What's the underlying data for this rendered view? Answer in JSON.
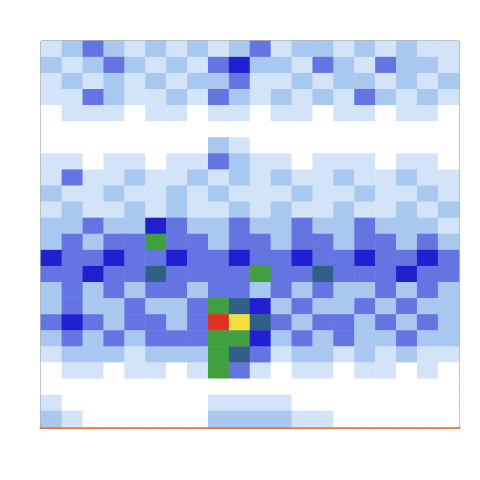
{
  "chart_data": {
    "type": "heatmap",
    "tick_labels": false,
    "zlim": [
      0,
      10
    ],
    "color": [
      "#ffffff",
      "#a8c8f0",
      "#2020d0",
      "#40a040",
      "#f0e040",
      "#e03020"
    ],
    "z": [
      [
        1,
        2,
        3,
        2,
        1,
        2,
        1,
        2,
        1,
        2,
        3,
        1,
        2,
        2,
        1,
        2,
        1,
        2,
        1,
        1
      ],
      [
        2,
        1,
        2,
        3,
        2,
        1,
        2,
        1,
        3,
        4,
        2,
        2,
        1,
        3,
        2,
        1,
        3,
        2,
        2,
        1
      ],
      [
        1,
        2,
        1,
        2,
        1,
        2,
        1,
        2,
        2,
        3,
        1,
        1,
        2,
        1,
        2,
        2,
        1,
        2,
        1,
        2
      ],
      [
        1,
        1,
        3,
        2,
        1,
        1,
        2,
        1,
        3,
        2,
        1,
        2,
        1,
        2,
        1,
        3,
        2,
        1,
        2,
        1
      ],
      [
        0,
        1,
        1,
        1,
        0,
        1,
        1,
        0,
        1,
        1,
        0,
        1,
        1,
        0,
        1,
        1,
        0,
        1,
        1,
        0
      ],
      [
        0,
        0,
        0,
        0,
        0,
        0,
        0,
        0,
        0,
        0,
        0,
        0,
        0,
        0,
        0,
        0,
        0,
        0,
        0,
        0
      ],
      [
        0,
        0,
        0,
        0,
        0,
        0,
        0,
        0,
        2,
        1,
        0,
        0,
        0,
        0,
        0,
        0,
        0,
        0,
        0,
        0
      ],
      [
        1,
        1,
        0,
        1,
        1,
        0,
        1,
        1,
        3,
        2,
        1,
        1,
        0,
        1,
        1,
        1,
        0,
        1,
        1,
        0
      ],
      [
        1,
        3,
        1,
        1,
        2,
        1,
        1,
        2,
        1,
        2,
        1,
        2,
        1,
        1,
        2,
        1,
        1,
        2,
        1,
        1
      ],
      [
        2,
        1,
        1,
        2,
        1,
        1,
        2,
        1,
        2,
        1,
        1,
        1,
        2,
        1,
        1,
        2,
        1,
        1,
        2,
        1
      ],
      [
        1,
        2,
        1,
        1,
        2,
        1,
        2,
        1,
        1,
        2,
        1,
        2,
        1,
        1,
        2,
        1,
        1,
        2,
        1,
        2
      ],
      [
        2,
        2,
        3,
        2,
        2,
        4,
        3,
        2,
        2,
        3,
        2,
        2,
        3,
        2,
        2,
        3,
        2,
        2,
        2,
        1
      ],
      [
        2,
        3,
        2,
        3,
        3,
        6,
        3,
        3,
        2,
        3,
        3,
        2,
        3,
        3,
        2,
        3,
        3,
        2,
        3,
        2
      ],
      [
        4,
        3,
        3,
        4,
        3,
        3,
        4,
        3,
        3,
        4,
        3,
        3,
        4,
        3,
        3,
        4,
        3,
        3,
        4,
        3
      ],
      [
        3,
        3,
        4,
        3,
        3,
        5,
        3,
        3,
        3,
        3,
        6,
        3,
        3,
        5,
        3,
        3,
        3,
        4,
        3,
        3
      ],
      [
        2,
        3,
        2,
        3,
        2,
        3,
        3,
        2,
        3,
        3,
        2,
        3,
        2,
        3,
        2,
        2,
        3,
        2,
        3,
        2
      ],
      [
        2,
        3,
        2,
        2,
        3,
        2,
        2,
        3,
        6,
        5,
        4,
        2,
        3,
        2,
        2,
        3,
        2,
        3,
        2,
        2
      ],
      [
        3,
        4,
        3,
        2,
        3,
        3,
        2,
        3,
        10,
        8,
        5,
        3,
        2,
        3,
        3,
        2,
        3,
        2,
        3,
        2
      ],
      [
        2,
        3,
        2,
        3,
        2,
        3,
        3,
        3,
        6,
        6,
        4,
        2,
        3,
        2,
        3,
        2,
        2,
        3,
        2,
        2
      ],
      [
        1,
        2,
        2,
        2,
        1,
        2,
        2,
        2,
        6,
        5,
        3,
        1,
        2,
        2,
        1,
        2,
        1,
        2,
        1,
        1
      ],
      [
        0,
        1,
        1,
        0,
        1,
        1,
        0,
        1,
        6,
        3,
        1,
        0,
        1,
        1,
        0,
        1,
        1,
        0,
        1,
        0
      ],
      [
        0,
        0,
        0,
        0,
        0,
        0,
        0,
        0,
        0,
        0,
        0,
        0,
        0,
        0,
        0,
        0,
        0,
        0,
        0,
        0
      ],
      [
        1,
        0,
        0,
        0,
        0,
        0,
        0,
        0,
        1,
        1,
        1,
        1,
        0,
        0,
        0,
        0,
        0,
        0,
        0,
        0
      ],
      [
        2,
        1,
        0,
        0,
        0,
        0,
        0,
        0,
        2,
        2,
        2,
        2,
        1,
        1,
        0,
        0,
        0,
        0,
        0,
        0
      ]
    ]
  }
}
